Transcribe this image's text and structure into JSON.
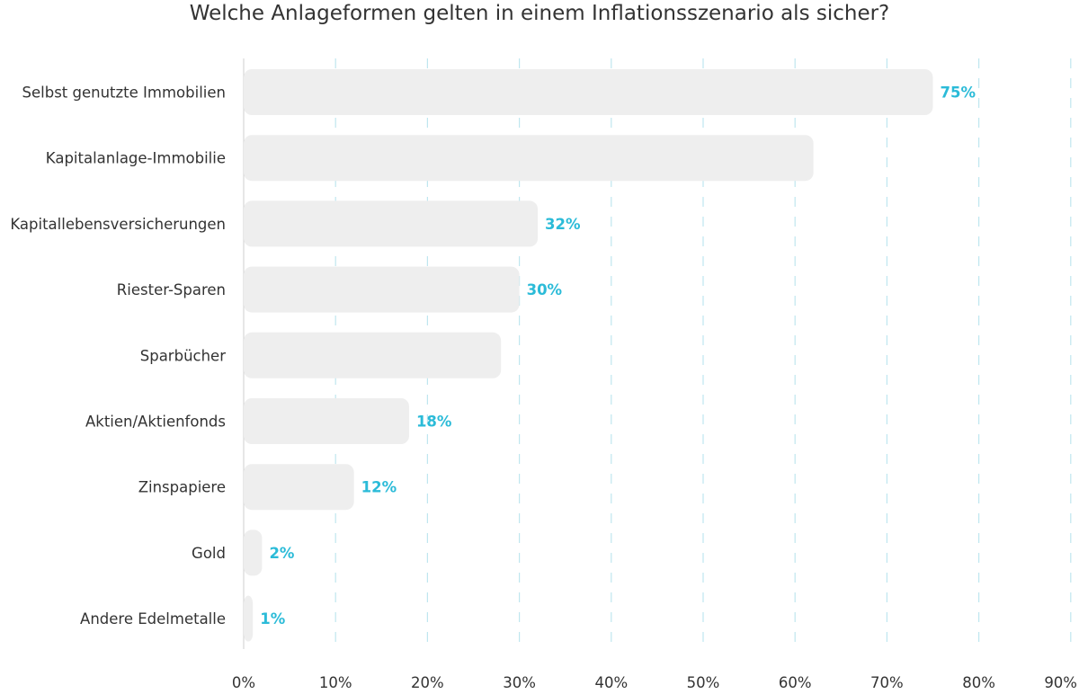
{
  "chart_data": {
    "type": "bar",
    "orientation": "horizontal",
    "title": "Welche Anlageformen gelten in einem Inflationsszenario als sicher?",
    "categories": [
      "Selbst genutzte Immobilien",
      "Kapitalanlage-Immobilie",
      "Kapitallebensversicherungen",
      "Riester-Sparen",
      "Sparbücher",
      "Aktien/Aktienfonds",
      "Zinspapiere",
      "Gold",
      "Andere Edelmetalle"
    ],
    "values": [
      75,
      62,
      32,
      30,
      28,
      18,
      12,
      2,
      1
    ],
    "data_labels": [
      "75%",
      "",
      "32%",
      "30%",
      "",
      "18%",
      "12%",
      "2%",
      "1%"
    ],
    "xlim": [
      0,
      90
    ],
    "x_ticks": [
      "0%",
      "10%",
      "20%",
      "30%",
      "40%",
      "50%",
      "60%",
      "70%",
      "80%",
      "90%"
    ],
    "grid": "vertical dashed",
    "colors": {
      "bar": "#eeeeee",
      "label": "#2bbbd8",
      "grid": "#bfe6ef",
      "text": "#333333"
    }
  }
}
